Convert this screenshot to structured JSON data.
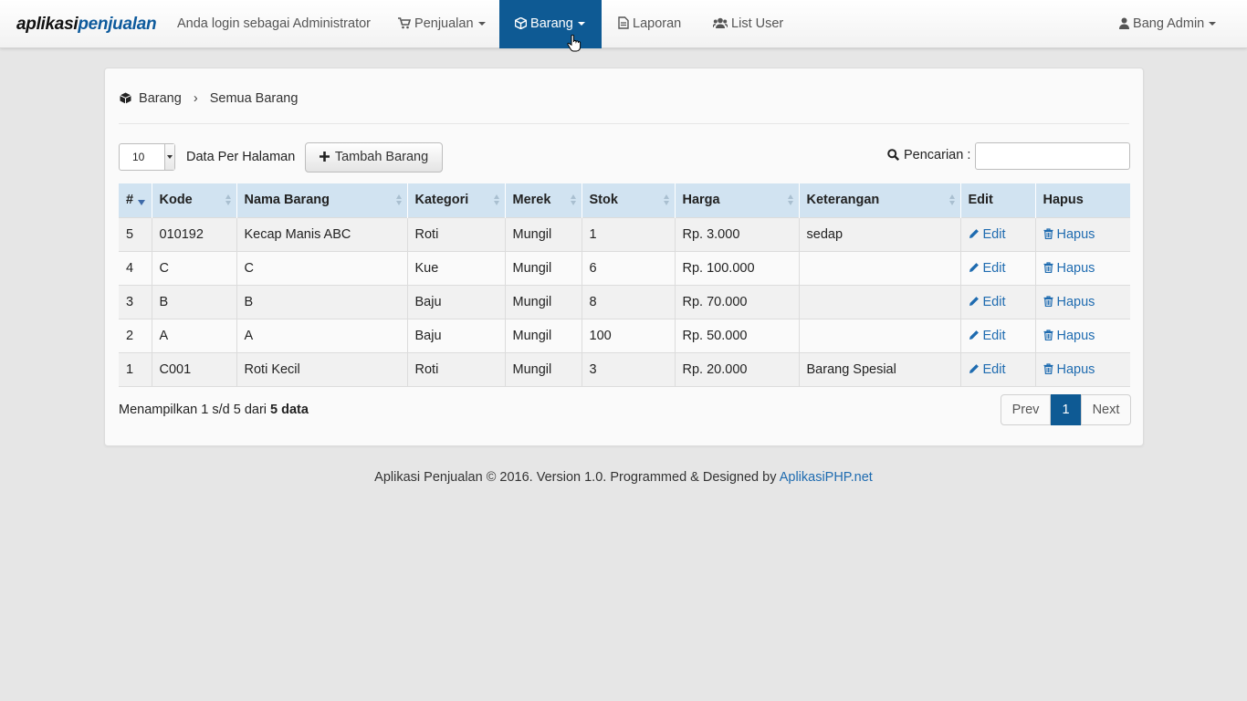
{
  "navbar": {
    "brand_part1": "aplikasi",
    "brand_part2": "penjualan",
    "login_text": "Anda login sebagai Administrator",
    "items": [
      {
        "label": "Penjualan",
        "icon": "cart-icon"
      },
      {
        "label": "Barang",
        "icon": "cube-icon",
        "active": true
      },
      {
        "label": "Laporan",
        "icon": "document-icon"
      },
      {
        "label": "List User",
        "icon": "users-icon"
      }
    ],
    "user_label": "Bang Admin",
    "active_color": "#0e5a94"
  },
  "breadcrumb": {
    "section": "Barang",
    "page": "Semua Barang"
  },
  "toolbar": {
    "per_page_value": "10",
    "per_page_label": "Data Per Halaman",
    "add_button_label": "Tambah Barang",
    "search_label": "Pencarian :",
    "search_value": ""
  },
  "table": {
    "columns": [
      "#",
      "Kode",
      "Nama Barang",
      "Kategori",
      "Merek",
      "Stok",
      "Harga",
      "Keterangan",
      "Edit",
      "Hapus"
    ],
    "edit_label": "Edit",
    "delete_label": "Hapus",
    "rows": [
      {
        "no": "5",
        "kode": "010192",
        "nama": "Kecap Manis ABC",
        "kategori": "Roti",
        "merek": "Mungil",
        "stok": "1",
        "harga": "Rp. 3.000",
        "keterangan": "sedap"
      },
      {
        "no": "4",
        "kode": "C",
        "nama": "C",
        "kategori": "Kue",
        "merek": "Mungil",
        "stok": "6",
        "harga": "Rp. 100.000",
        "keterangan": ""
      },
      {
        "no": "3",
        "kode": "B",
        "nama": "B",
        "kategori": "Baju",
        "merek": "Mungil",
        "stok": "8",
        "harga": "Rp. 70.000",
        "keterangan": ""
      },
      {
        "no": "2",
        "kode": "A",
        "nama": "A",
        "kategori": "Baju",
        "merek": "Mungil",
        "stok": "100",
        "harga": "Rp. 50.000",
        "keterangan": ""
      },
      {
        "no": "1",
        "kode": "C001",
        "nama": "Roti Kecil",
        "kategori": "Roti",
        "merek": "Mungil",
        "stok": "3",
        "harga": "Rp. 20.000",
        "keterangan": "Barang Spesial"
      }
    ]
  },
  "summary": {
    "prefix": "Menampilkan 1 s/d 5 dari",
    "total": "5 data"
  },
  "pagination": {
    "prev": "Prev",
    "current": "1",
    "next": "Next"
  },
  "footer": {
    "text": "Aplikasi Penjualan © 2016. Version 1.0. Programmed & Designed by",
    "link": "AplikasiPHP.net"
  }
}
